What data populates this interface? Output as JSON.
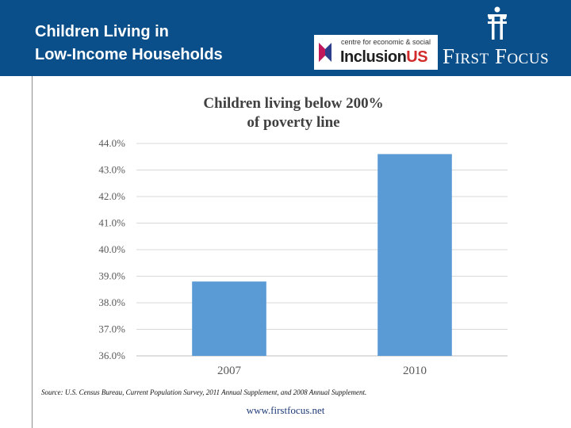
{
  "slide": {
    "title_line1": "Children Living in",
    "title_line2": "Low-Income Households"
  },
  "logos": {
    "inclusion_tagline": "centre for economic & social",
    "inclusion_word_part1": "Inclusion",
    "inclusion_word_part2": "US",
    "first_focus": "First Focus"
  },
  "colors": {
    "header": "#0b4f8a",
    "bar": "#5b9bd5",
    "grid": "#d9d9d9",
    "inclusion_accent": "#d22b2b"
  },
  "chart_data": {
    "type": "bar",
    "title": "Children living below 200% of poverty line",
    "title_line1": "Children living below 200%",
    "title_line2": "of poverty line",
    "categories": [
      "2007",
      "2010"
    ],
    "values": [
      38.8,
      43.6
    ],
    "ylim": [
      36.0,
      44.0
    ],
    "yticks": [
      "36.0%",
      "37.0%",
      "38.0%",
      "39.0%",
      "40.0%",
      "41.0%",
      "42.0%",
      "43.0%",
      "44.0%"
    ],
    "ytick_values": [
      36,
      37,
      38,
      39,
      40,
      41,
      42,
      43,
      44
    ],
    "grid": true,
    "xlabel": "",
    "ylabel": ""
  },
  "footer": {
    "source": "Source: U.S. Census Bureau, Current Population Survey, 2011 Annual Supplement, and 2008 Annual Supplement.",
    "url": "www.firstfocus.net"
  }
}
